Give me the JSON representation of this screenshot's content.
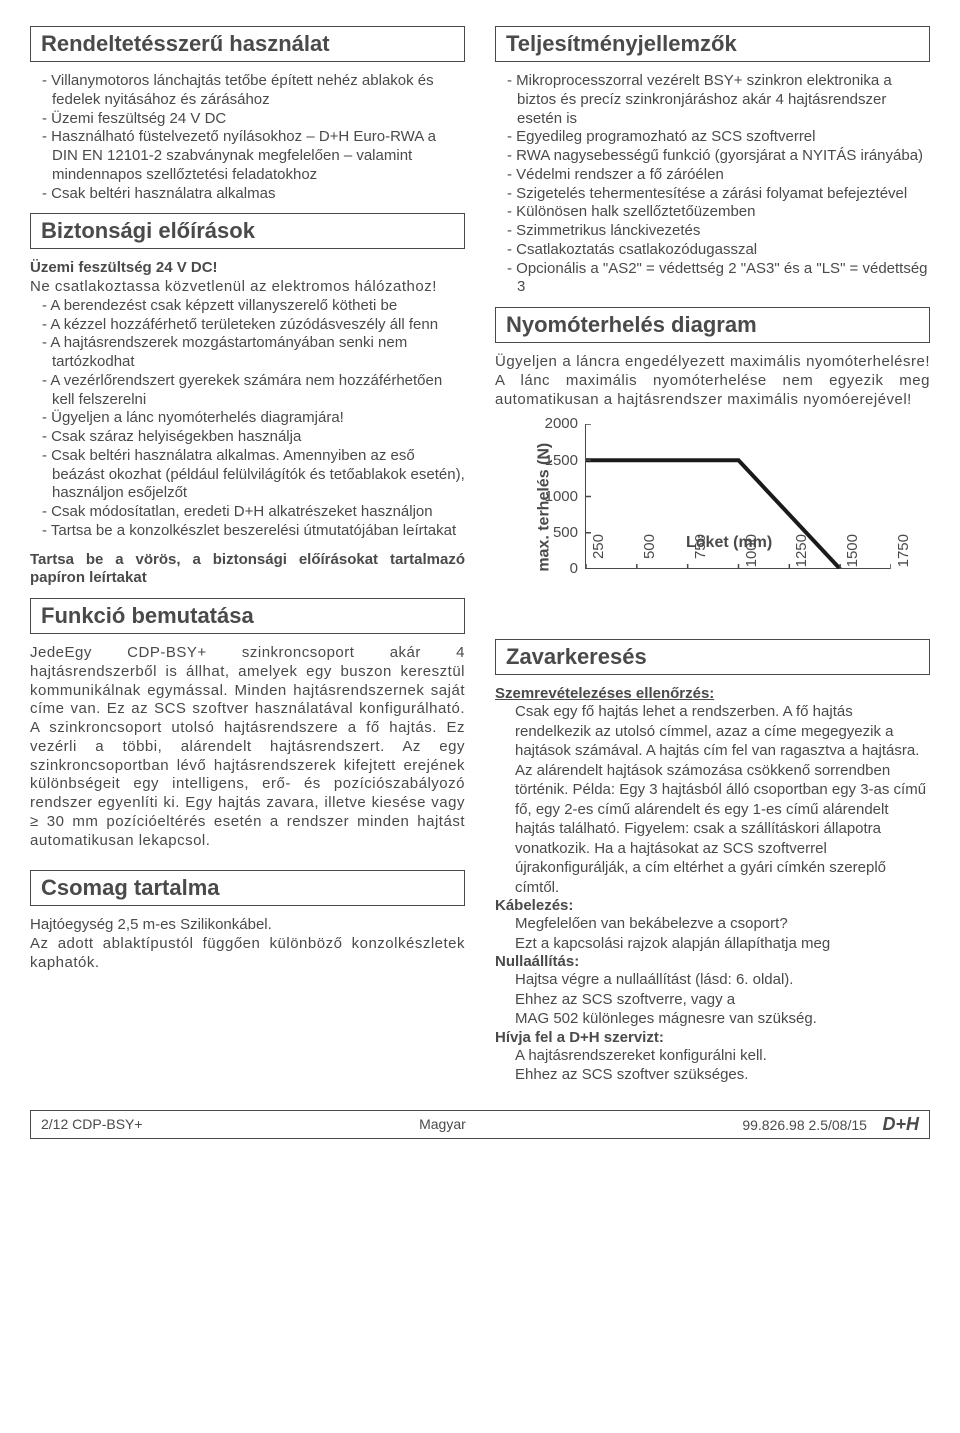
{
  "left": {
    "s1_title": "Rendeltetésszerű használat",
    "s1_items": [
      "Villanymotoros lánchajtás tetőbe épített nehéz ablakok és fedelek nyitásához és zárásához",
      "Üzemi feszültség 24 V DC",
      "Használható füstelvezető nyílásokhoz – D+H Euro-RWA a DIN EN 12101-2 szabványnak megfelelően – valamint mindennapos szellőztetési feladatokhoz",
      "Csak beltéri használatra alkalmas"
    ],
    "s2_title": "Biztonsági előírások",
    "s2_lead1": "Üzemi feszültség  24 V DC!",
    "s2_lead2": "Ne csatlakoztassa közvetlenül az elektromos hálózathoz!",
    "s2_items": [
      "A berendezést csak képzett villanyszerelő kötheti be",
      "A kézzel hozzáférhető területeken zúzódásveszély áll fenn",
      "A hajtásrendszerek mozgástartományában senki nem tartózkodhat",
      "A vezérlőrendszert gyerekek számára nem hozzáférhetően kell felszerelni",
      "Ügyeljen a lánc nyomóterhelés diagramjára!",
      "Csak száraz helyiségekben használja",
      "Csak beltéri használatra alkalmas. Amennyiben az eső beázást okozhat (például felülvilágítók és tetőablakok esetén), használjon esőjelzőt",
      "Csak módosítatlan, eredeti D+H alkatrészeket használjon",
      "Tartsa be a konzolkészlet beszerelési útmutatójában leírtakat"
    ],
    "s2_tail": "Tartsa be a vörös, a biztonsági előírásokat tartalmazó papíron leírtakat",
    "s3_title": "Funkció bemutatása",
    "s3_body": "JedeEgy CDP-BSY+ szinkroncsoport akár 4 hajtásrendszerből is állhat, amelyek egy buszon keresztül kommunikálnak egymással. Minden hajtásrendszernek saját címe van. Ez az SCS szoftver használatával konfigurálható. A szinkroncsoport utolsó hajtásrendszere a fő hajtás. Ez vezérli a többi, alárendelt hajtásrendszert. Az egy szinkroncsoportban lévő hajtásrendszerek kifejtett erejének különbségeit egy intelligens, erő- és pozíciószabályozó rendszer egyenlíti ki. Egy hajtás zavara, illetve kiesése vagy ≥ 30 mm pozícióeltérés esetén a rendszer minden hajtást automatikusan lekapcsol.",
    "s4_title": "Csomag tartalma",
    "s4_l1": "Hajtóegység 2,5 m-es Szilikonkábel.",
    "s4_l2": "Az adott ablaktípustól függően különböző konzolkészletek kaphatók."
  },
  "right": {
    "s5_title": "Teljesítményjellemzők",
    "s5_items": [
      "Mikroprocesszorral vezérelt BSY+ szinkron elektronika a biztos és precíz szinkronjáráshoz akár 4 hajtásrendszer esetén is",
      "Egyedileg programozható az SCS szoftverrel",
      "RWA nagysebességű funkció (gyorsjárat a NYITÁS irányába)",
      "Védelmi rendszer a fő záróélen",
      "Szigetelés tehermentesítése a zárási folyamat befejeztével",
      "Különösen halk szellőztetőüzemben",
      "Szimmetrikus lánckivezetés",
      "Csatlakoztatás csatlakozódugasszal",
      "Opcionális a \"AS2\" = védettség 2 \"AS3\" és a \"LS\" = védettség 3"
    ],
    "s6_title": "Nyomóterhelés diagram",
    "s6_lead": "Ügyeljen a láncra engedélyezett maximális nyomóterhelésre! A lánc maximális nyomóterhelése nem egyezik meg automatikusan a hajtásrendszer maximális nyomóerejével!",
    "chart": {
      "ylabel": "max. terhelés (N)",
      "xlabel": "Löket (mm)",
      "yticks": [
        "2000",
        "1500",
        "1000",
        "500",
        "0"
      ],
      "ytick_vals": [
        2000,
        1500,
        1000,
        500,
        0
      ],
      "xticks": [
        "250",
        "500",
        "750",
        "1000",
        "1250",
        "1500",
        "1750"
      ],
      "xtick_vals": [
        250,
        500,
        750,
        1000,
        1250,
        1500,
        1750
      ],
      "line_start_y": 1500,
      "line_corner_x": 1000,
      "line_end_x": 1500,
      "ymax": 2000,
      "xmin": 250,
      "xmax": 1750,
      "line_color": "#1a1a1a",
      "axis_color": "#4a4a4a"
    },
    "s7_title": "Zavarkeresés",
    "s7_h1": "Szemrevételezéses ellenőrzés:",
    "s7_p1": "Csak egy fő hajtás lehet a rendszerben. A fő hajtás rendelkezik az utolsó címmel, azaz a címe megegyezik a hajtások számával. A hajtás cím fel van ragasztva a hajtásra. Az alárendelt hajtások számozása csökkenő sorrendben történik. Példa: Egy 3 hajtásból álló csoportban egy 3-as című fő, egy 2-es című alárendelt és egy 1-es című alárendelt hajtás található. Figyelem: csak a szállításkori állapotra vonatkozik. Ha a hajtásokat az SCS szoftverrel újrakonfigurálják, a cím eltérhet a gyári címkén szereplő címtől.",
    "s7_h2": "Kábelezés:",
    "s7_p2a": "Megfelelően van bekábelezve a csoport?",
    "s7_p2b": "Ezt a kapcsolási rajzok alapján állapíthatja meg",
    "s7_h3": "Nullaállítás:",
    "s7_p3a": "Hajtsa végre a nullaállítást (lásd: 6. oldal).",
    "s7_p3b": "Ehhez az SCS szoftverre, vagy a",
    "s7_p3c": "MAG 502 különleges mágnesre van szükség.",
    "s7_h4": "Hívja fel a D+H szervizt:",
    "s7_p4a": "A hajtásrendszereket konfigurálni kell.",
    "s7_p4b": "Ehhez az SCS szoftver szükséges."
  },
  "footer": {
    "left": "2/12    CDP-BSY+",
    "center": "Magyar",
    "right": "99.826.98 2.5/08/15",
    "logo": "D+H"
  }
}
